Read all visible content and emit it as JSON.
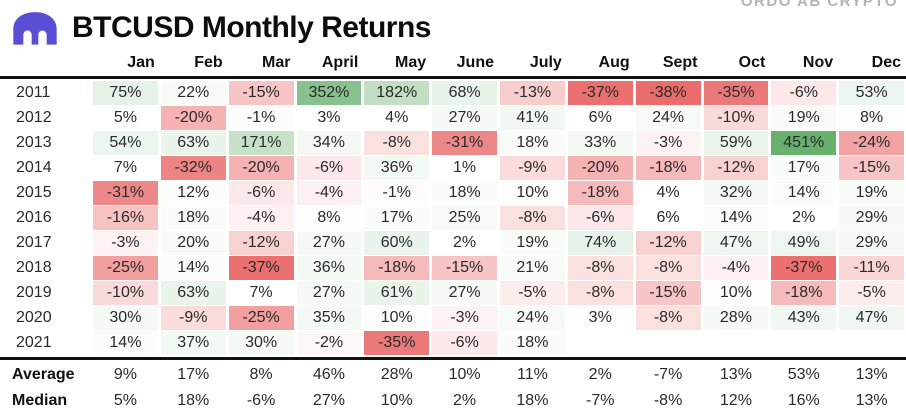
{
  "header": {
    "title": "BTCUSD Monthly Returns",
    "watermark": "ORDO AB CRYPTO",
    "logo_color": "#5a4fd4"
  },
  "chart_data": {
    "type": "heatmap",
    "title": "BTCUSD Monthly Returns",
    "unit": "%",
    "columns": [
      "Jan",
      "Feb",
      "Mar",
      "April",
      "May",
      "June",
      "July",
      "Aug",
      "Sept",
      "Oct",
      "Nov",
      "Dec"
    ],
    "rows": [
      {
        "label": "2011",
        "values": [
          75,
          22,
          -15,
          352,
          182,
          68,
          -13,
          -37,
          -38,
          -35,
          -6,
          53
        ]
      },
      {
        "label": "2012",
        "values": [
          5,
          -20,
          -1,
          3,
          4,
          27,
          41,
          6,
          24,
          -10,
          19,
          8
        ]
      },
      {
        "label": "2013",
        "values": [
          54,
          63,
          171,
          34,
          -8,
          -31,
          18,
          33,
          -3,
          59,
          451,
          -24
        ]
      },
      {
        "label": "2014",
        "values": [
          7,
          -32,
          -20,
          -6,
          36,
          1,
          -9,
          -20,
          -18,
          -12,
          17,
          -15
        ]
      },
      {
        "label": "2015",
        "values": [
          -31,
          12,
          -6,
          -4,
          -1,
          18,
          10,
          -18,
          4,
          32,
          14,
          19
        ]
      },
      {
        "label": "2016",
        "values": [
          -16,
          18,
          -4,
          8,
          17,
          25,
          -8,
          -6,
          6,
          14,
          2,
          29
        ]
      },
      {
        "label": "2017",
        "values": [
          -3,
          20,
          -12,
          27,
          60,
          2,
          19,
          74,
          -12,
          47,
          49,
          29
        ]
      },
      {
        "label": "2018",
        "values": [
          -25,
          14,
          -37,
          36,
          -18,
          -15,
          21,
          -8,
          -8,
          -4,
          -37,
          -11
        ]
      },
      {
        "label": "2019",
        "values": [
          -10,
          63,
          7,
          27,
          61,
          27,
          -5,
          -8,
          -15,
          10,
          -18,
          -5
        ]
      },
      {
        "label": "2020",
        "values": [
          30,
          -9,
          -25,
          35,
          10,
          -3,
          24,
          3,
          -8,
          28,
          43,
          47
        ]
      },
      {
        "label": "2021",
        "values": [
          14,
          37,
          30,
          -2,
          -35,
          -6,
          18,
          null,
          null,
          null,
          null,
          null
        ]
      }
    ],
    "summary_rows": [
      {
        "label": "Average",
        "values": [
          9,
          17,
          8,
          46,
          28,
          10,
          11,
          2,
          -7,
          13,
          53,
          13
        ]
      },
      {
        "label": "Median",
        "values": [
          5,
          18,
          -6,
          27,
          10,
          2,
          18,
          -7,
          -8,
          12,
          16,
          13
        ]
      }
    ],
    "color_scale": {
      "neutral": "#ffffff",
      "positive_max": "#68b06e",
      "negative_max": "#ea6d6d",
      "domain_min": -38,
      "domain_max": 451
    },
    "legend": "none",
    "grid": "off"
  }
}
